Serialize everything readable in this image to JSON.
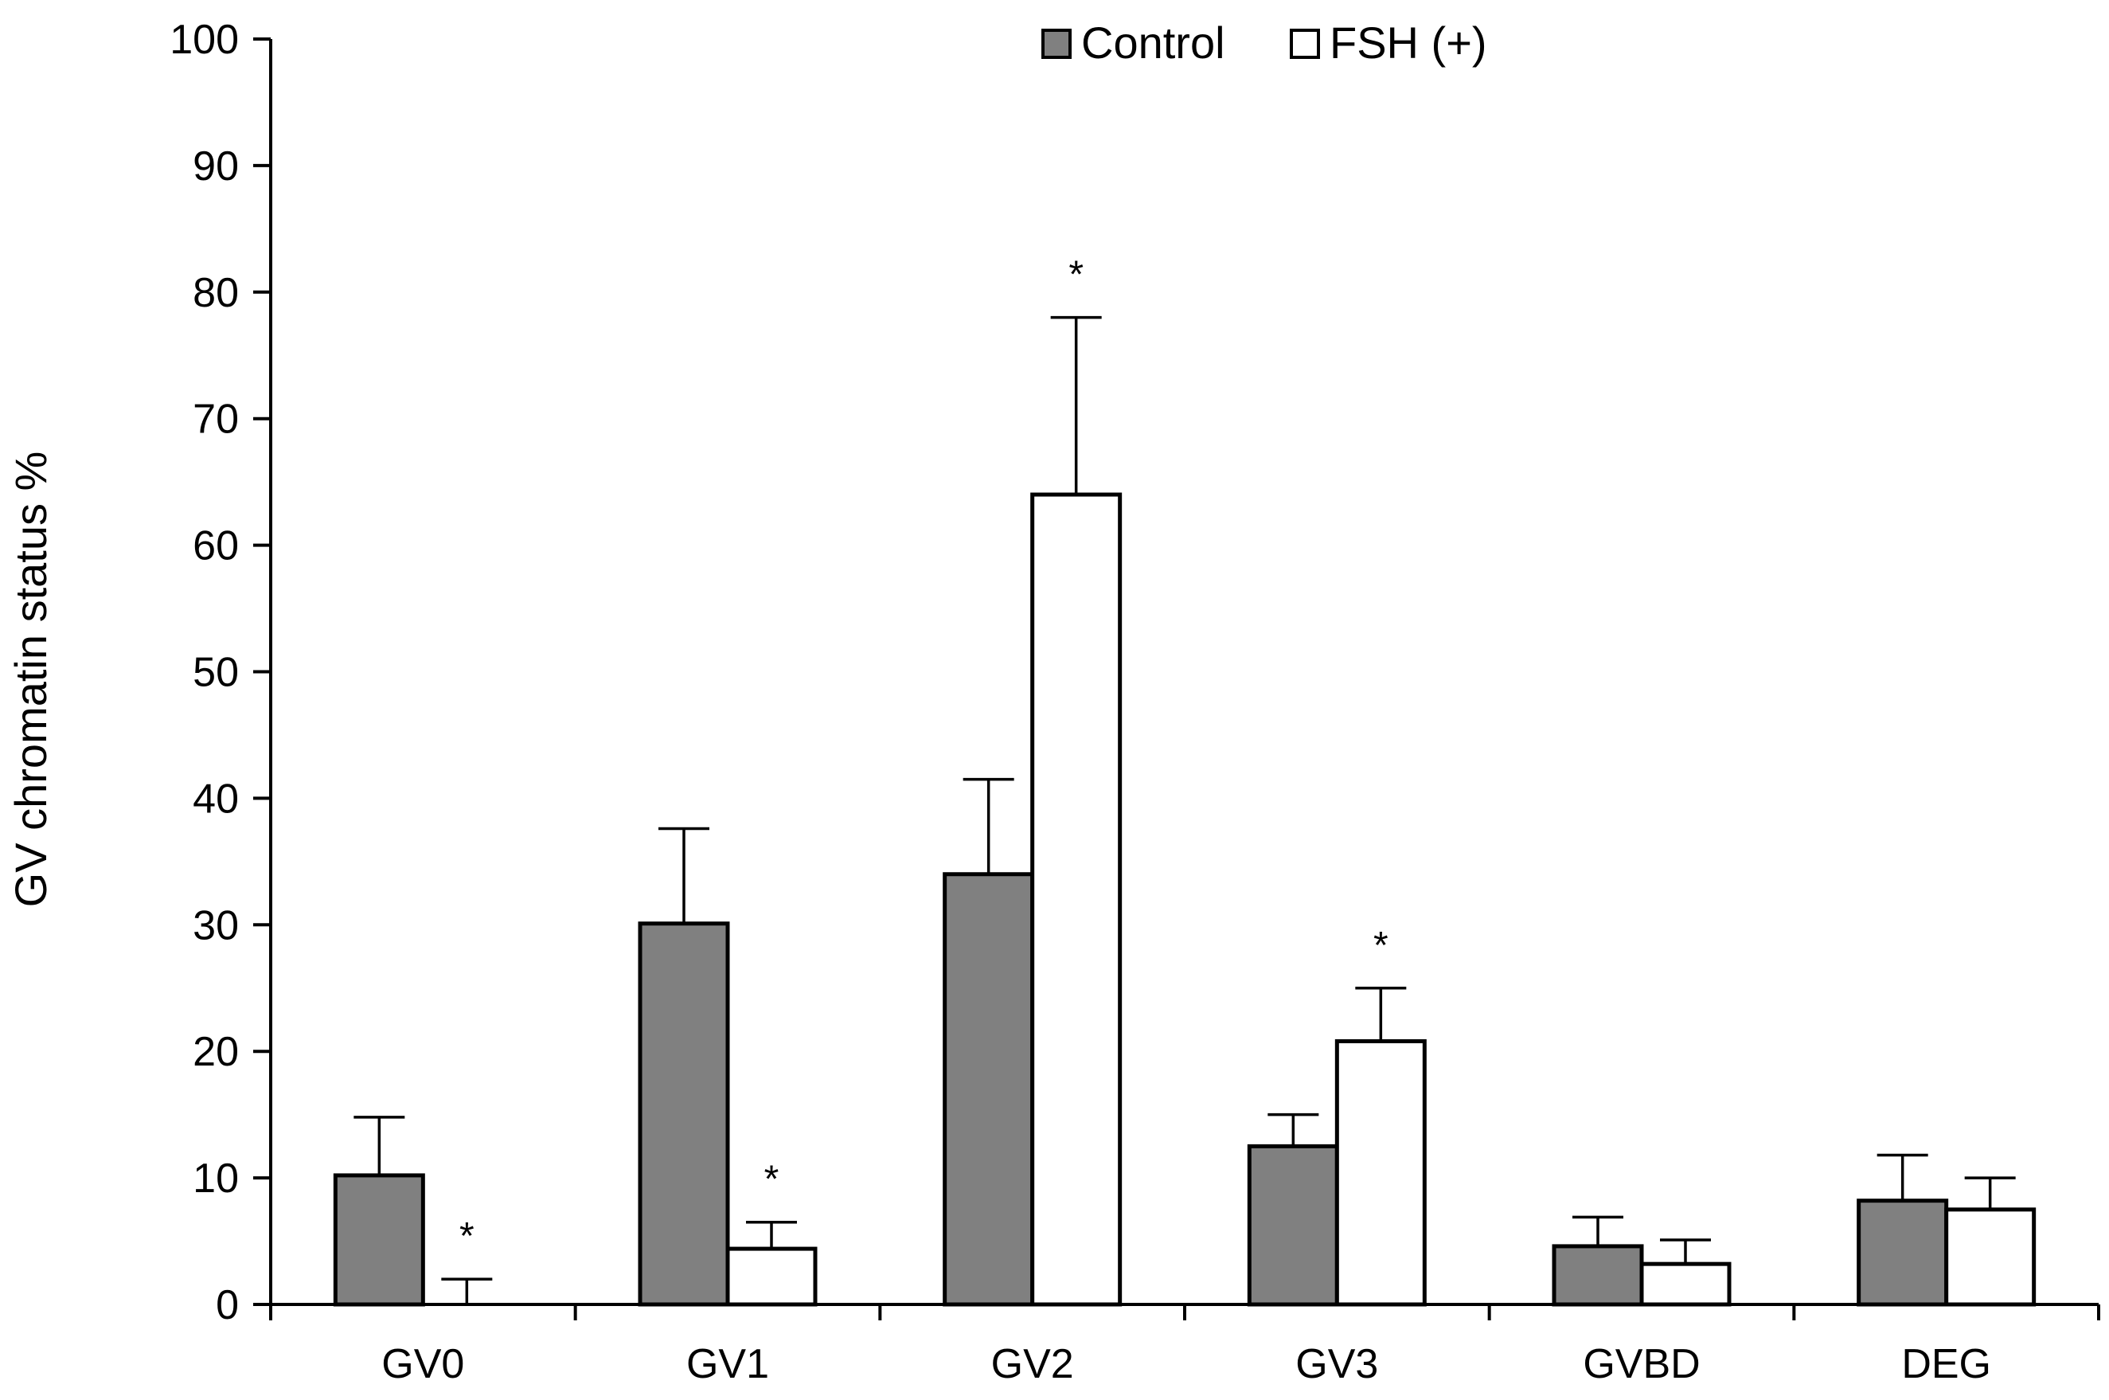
{
  "chart_data": {
    "type": "bar",
    "title": "",
    "xlabel": "",
    "ylabel": "GV chromatin status %",
    "ylim": [
      0,
      100
    ],
    "yticks": [
      0,
      10,
      20,
      30,
      40,
      50,
      60,
      70,
      80,
      90,
      100
    ],
    "categories": [
      "GV0",
      "GV1",
      "GV2",
      "GV3",
      "GVBD",
      "DEG"
    ],
    "series": [
      {
        "name": "Control",
        "color": "#808080",
        "values": [
          10.2,
          30.1,
          34.0,
          12.5,
          4.6,
          8.2
        ],
        "errors": [
          4.6,
          7.5,
          7.5,
          2.5,
          2.3,
          3.6
        ]
      },
      {
        "name": "FSH (+)",
        "color": "#ffffff",
        "values": [
          0.0,
          4.4,
          64.0,
          20.8,
          3.2,
          7.5
        ],
        "errors": [
          2.0,
          2.1,
          14.0,
          4.2,
          1.9,
          2.5
        ],
        "significance": [
          "*",
          "*",
          "*",
          "*",
          "",
          ""
        ]
      }
    ],
    "legend": {
      "position": "top-center",
      "entries": [
        "Control",
        "FSH (+)"
      ]
    }
  }
}
